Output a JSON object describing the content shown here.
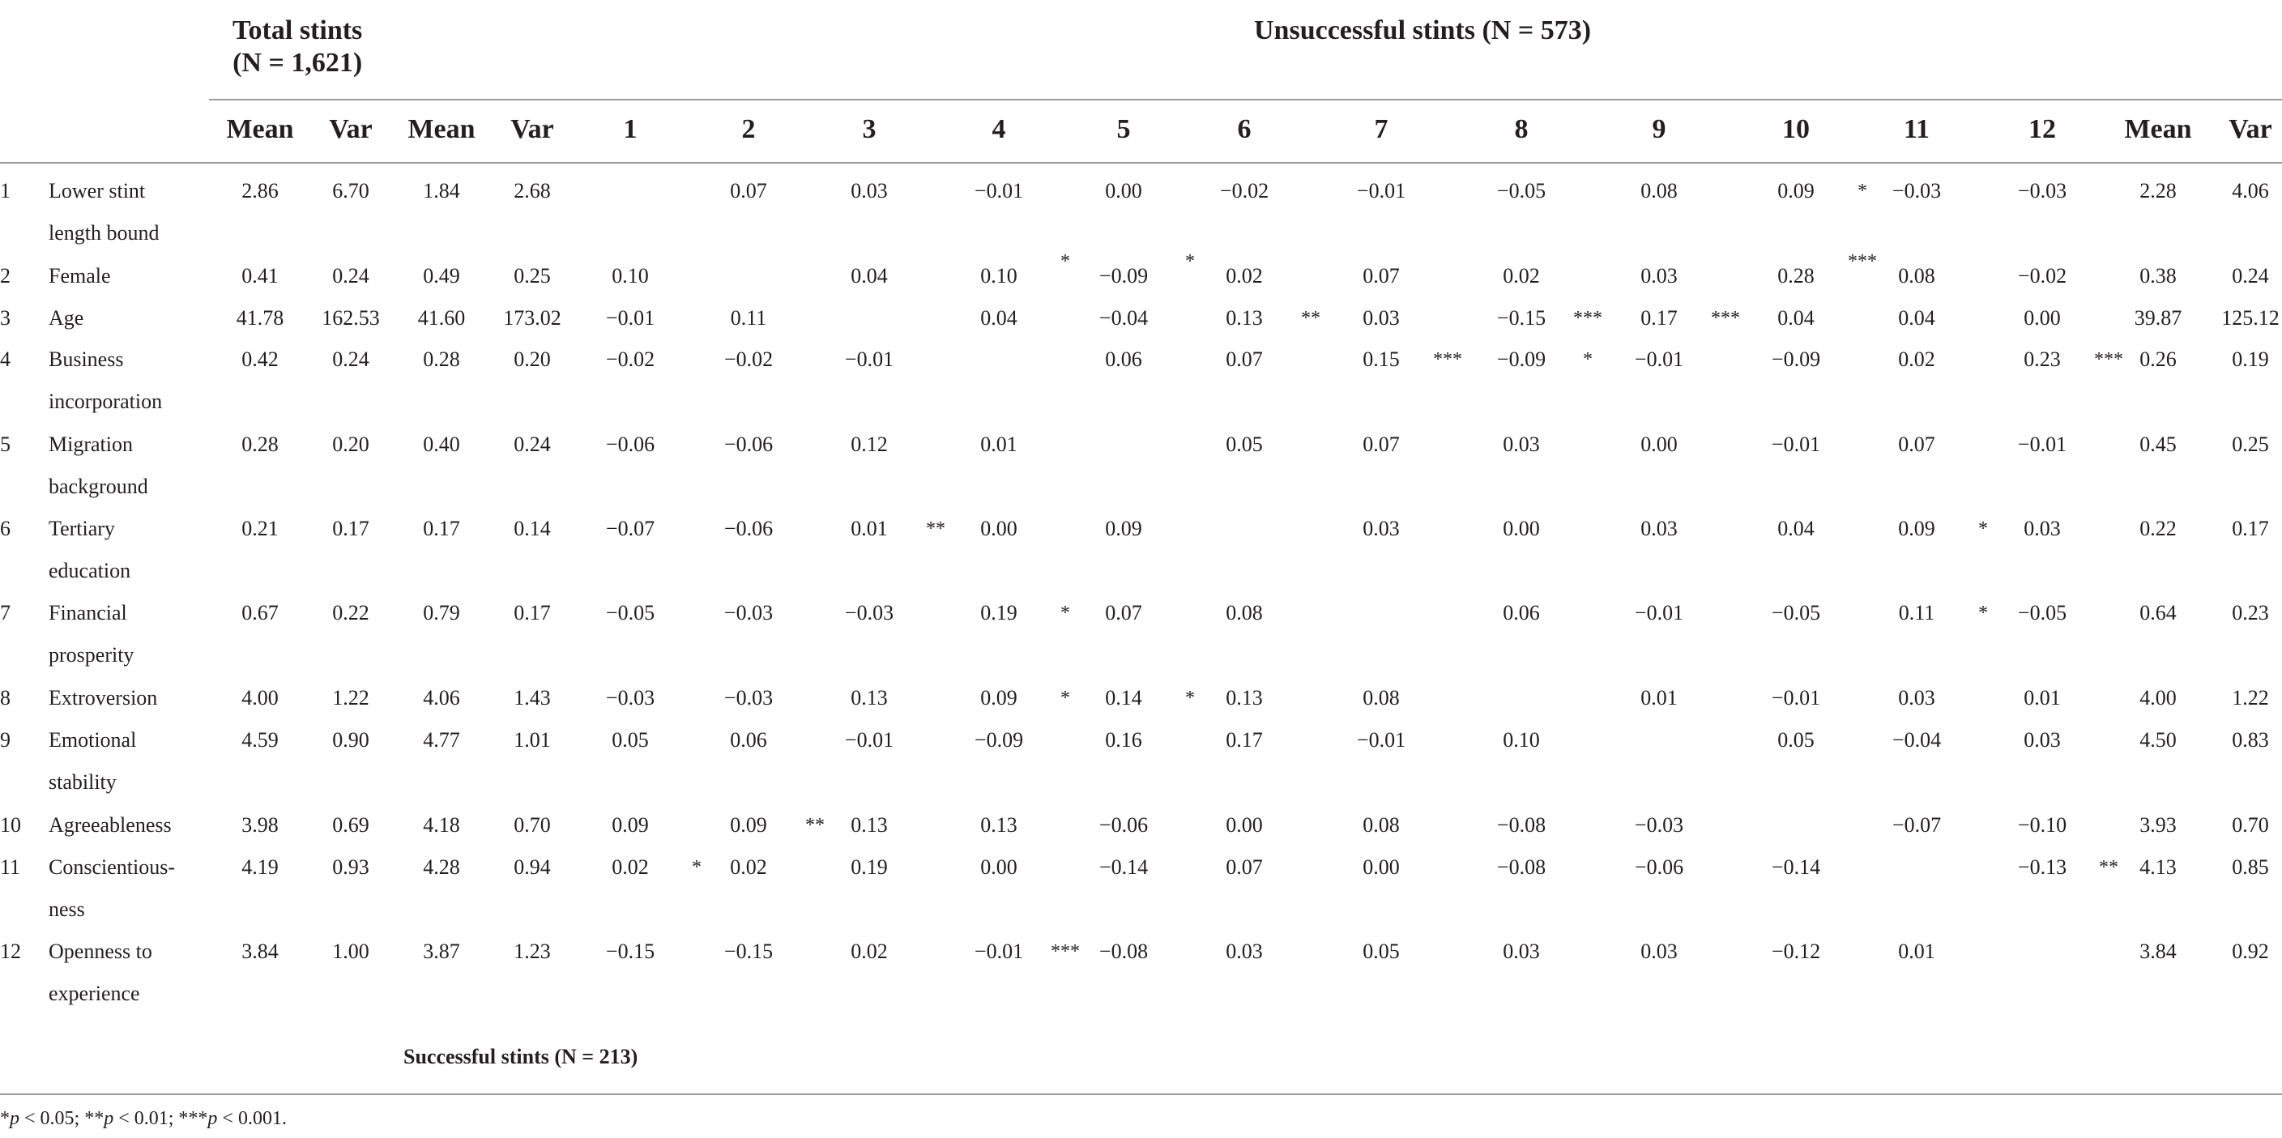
{
  "header": {
    "total_title_line1": "Total stints",
    "total_title_line2": "(N = 1,621)",
    "unsuccessful_title": "Unsuccessful stints (N = 573)",
    "successful_title": "Successful stints (N = 213)"
  },
  "columns": [
    "Mean",
    "Var",
    "Mean",
    "Var",
    "1",
    "2",
    "3",
    "4",
    "5",
    "6",
    "7",
    "8",
    "9",
    "10",
    "11",
    "12",
    "Mean",
    "Var"
  ],
  "rows": [
    {
      "num": "1",
      "label": [
        "Lower stint",
        "length bound"
      ],
      "values": [
        "2.86",
        "6.70",
        "1.84",
        "2.68",
        "",
        "0.07",
        "0.03",
        "−0.01",
        "0.00",
        "−0.02",
        "−0.01",
        "−0.05",
        "0.08",
        "0.09",
        "−0.03",
        "−0.03",
        "2.28",
        "4.06"
      ]
    },
    {
      "num": "2",
      "label": [
        "Female"
      ],
      "values": [
        "0.41",
        "0.24",
        "0.49",
        "0.25",
        "0.10",
        "",
        "0.04",
        "0.10",
        "−0.09",
        "0.02",
        "0.07",
        "0.02",
        "0.03",
        "0.28",
        "0.08",
        "−0.02",
        "0.38",
        "0.24"
      ]
    },
    {
      "num": "3",
      "label": [
        "Age"
      ],
      "values": [
        "41.78",
        "162.53",
        "41.60",
        "173.02",
        "−0.01",
        "0.11",
        "",
        "0.04",
        "−0.04",
        "0.13",
        "0.03",
        "−0.15",
        "0.17",
        "0.04",
        "0.04",
        "0.00",
        "39.87",
        "125.12"
      ]
    },
    {
      "num": "4",
      "label": [
        "Business",
        "incorporation"
      ],
      "values": [
        "0.42",
        "0.24",
        "0.28",
        "0.20",
        "−0.02",
        "−0.02",
        "−0.01",
        "",
        "0.06",
        "0.07",
        "0.15",
        "−0.09",
        "−0.01",
        "−0.09",
        "0.02",
        "0.23",
        "0.26",
        "0.19"
      ]
    },
    {
      "num": "5",
      "label": [
        "Migration",
        "background"
      ],
      "values": [
        "0.28",
        "0.20",
        "0.40",
        "0.24",
        "−0.06",
        "−0.06",
        "0.12",
        "0.01",
        "",
        "0.05",
        "0.07",
        "0.03",
        "0.00",
        "−0.01",
        "0.07",
        "−0.01",
        "0.45",
        "0.25"
      ]
    },
    {
      "num": "6",
      "label": [
        "Tertiary",
        "education"
      ],
      "values": [
        "0.21",
        "0.17",
        "0.17",
        "0.14",
        "−0.07",
        "−0.06",
        "0.01",
        "0.00",
        "0.09",
        "",
        "0.03",
        "0.00",
        "0.03",
        "0.04",
        "0.09",
        "0.03",
        "0.22",
        "0.17"
      ]
    },
    {
      "num": "7",
      "label": [
        "Financial",
        "prosperity"
      ],
      "values": [
        "0.67",
        "0.22",
        "0.79",
        "0.17",
        "−0.05",
        "−0.03",
        "−0.03",
        "0.19",
        "0.07",
        "0.08",
        "",
        "0.06",
        "−0.01",
        "−0.05",
        "0.11",
        "−0.05",
        "0.64",
        "0.23"
      ]
    },
    {
      "num": "8",
      "label": [
        "Extroversion"
      ],
      "values": [
        "4.00",
        "1.22",
        "4.06",
        "1.43",
        "−0.03",
        "−0.03",
        "0.13",
        "0.09",
        "0.14",
        "0.13",
        "0.08",
        "",
        "0.01",
        "−0.01",
        "0.03",
        "0.01",
        "4.00",
        "1.22"
      ]
    },
    {
      "num": "9",
      "label": [
        "Emotional",
        "stability"
      ],
      "values": [
        "4.59",
        "0.90",
        "4.77",
        "1.01",
        "0.05",
        "0.06",
        "−0.01",
        "−0.09",
        "0.16",
        "0.17",
        "−0.01",
        "0.10",
        "",
        "0.05",
        "−0.04",
        "0.03",
        "4.50",
        "0.83"
      ]
    },
    {
      "num": "10",
      "label": [
        "Agreeableness"
      ],
      "values": [
        "3.98",
        "0.69",
        "4.18",
        "0.70",
        "0.09",
        "0.09",
        "0.13",
        "0.13",
        "−0.06",
        "0.00",
        "0.08",
        "−0.08",
        "−0.03",
        "",
        "−0.07",
        "−0.10",
        "3.93",
        "0.70"
      ]
    },
    {
      "num": "11",
      "label": [
        "Conscientious-",
        "ness"
      ],
      "values": [
        "4.19",
        "0.93",
        "4.28",
        "0.94",
        "0.02",
        "0.02",
        "0.19",
        "0.00",
        "−0.14",
        "0.07",
        "0.00",
        "−0.08",
        "−0.06",
        "−0.14",
        "",
        "−0.13",
        "4.13",
        "0.85"
      ]
    },
    {
      "num": "12",
      "label": [
        "Openness to",
        "experience"
      ],
      "values": [
        "3.84",
        "1.00",
        "3.87",
        "1.23",
        "−0.15",
        "−0.15",
        "0.02",
        "−0.01",
        "−0.08",
        "0.03",
        "0.05",
        "0.03",
        "0.03",
        "−0.12",
        "0.01",
        "",
        "3.84",
        "0.92"
      ]
    }
  ],
  "stars": [
    {
      "row": 0,
      "after_col": 13,
      "text": "*",
      "raised": false
    },
    {
      "row": 1,
      "after_col": 7,
      "text": "*",
      "raised": true
    },
    {
      "row": 1,
      "after_col": 8,
      "text": "*",
      "raised": true
    },
    {
      "row": 1,
      "after_col": 13,
      "text": "***",
      "raised": true
    },
    {
      "row": 2,
      "after_col": 9,
      "text": "**",
      "raised": false
    },
    {
      "row": 2,
      "after_col": 11,
      "text": "***",
      "raised": false
    },
    {
      "row": 2,
      "after_col": 12,
      "text": "***",
      "raised": false
    },
    {
      "row": 3,
      "after_col": 10,
      "text": "***",
      "raised": false
    },
    {
      "row": 3,
      "after_col": 11,
      "text": "*",
      "raised": false
    },
    {
      "row": 3,
      "after_col": 15,
      "text": "***",
      "raised": false
    },
    {
      "row": 5,
      "after_col": 6,
      "text": "**",
      "raised": false
    },
    {
      "row": 5,
      "after_col": 14,
      "text": "*",
      "raised": false
    },
    {
      "row": 6,
      "after_col": 7,
      "text": "*",
      "raised": false
    },
    {
      "row": 6,
      "after_col": 14,
      "text": "*",
      "raised": false
    },
    {
      "row": 7,
      "after_col": 7,
      "text": "*",
      "raised": false
    },
    {
      "row": 7,
      "after_col": 8,
      "text": "*",
      "raised": false
    },
    {
      "row": 9,
      "after_col": 5,
      "text": "**",
      "raised": false
    },
    {
      "row": 10,
      "after_col": 4,
      "text": "*",
      "raised": false
    },
    {
      "row": 10,
      "after_col": 15,
      "text": "**",
      "raised": false
    },
    {
      "row": 11,
      "after_col": 7,
      "text": "***",
      "raised": false
    }
  ],
  "footnote": {
    "parts": [
      "*",
      "p",
      " < 0.05; **",
      "p",
      " < 0.01; ***",
      "p",
      " < 0.001."
    ]
  }
}
